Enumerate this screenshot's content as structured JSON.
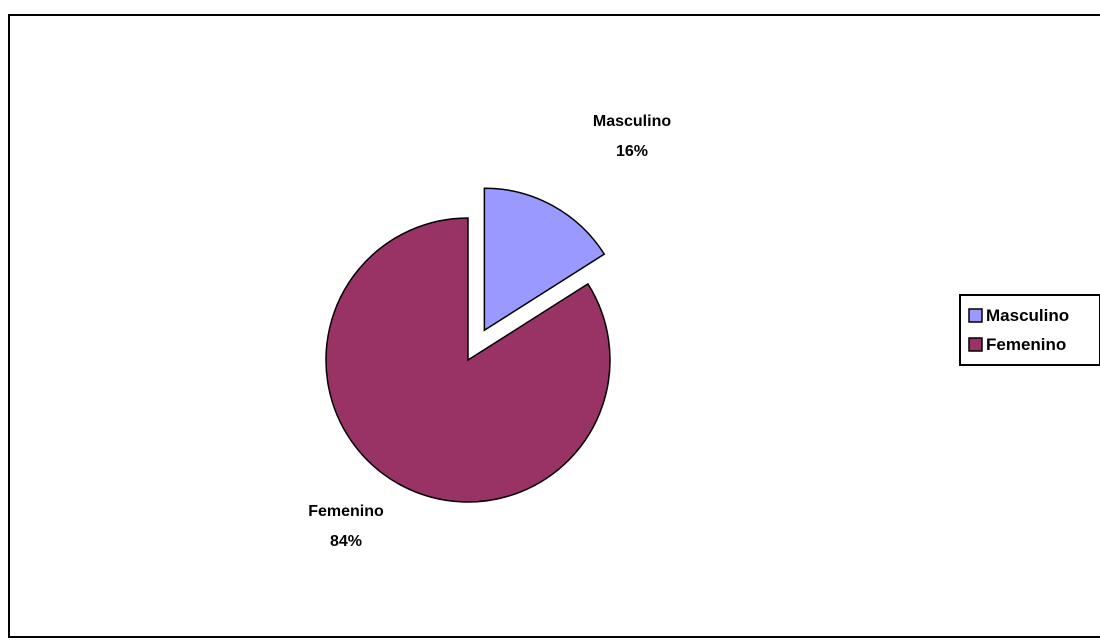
{
  "chart_data": {
    "type": "pie",
    "title": "",
    "categories": [
      "Masculino",
      "Femenino"
    ],
    "values": [
      16,
      84
    ],
    "data_labels": [
      "16%",
      "84%"
    ],
    "colors": [
      "#9999ff",
      "#993366"
    ],
    "exploded": [
      "Masculino"
    ],
    "legend": {
      "placement": "right",
      "entries": [
        "Masculino",
        "Femenino"
      ]
    }
  }
}
